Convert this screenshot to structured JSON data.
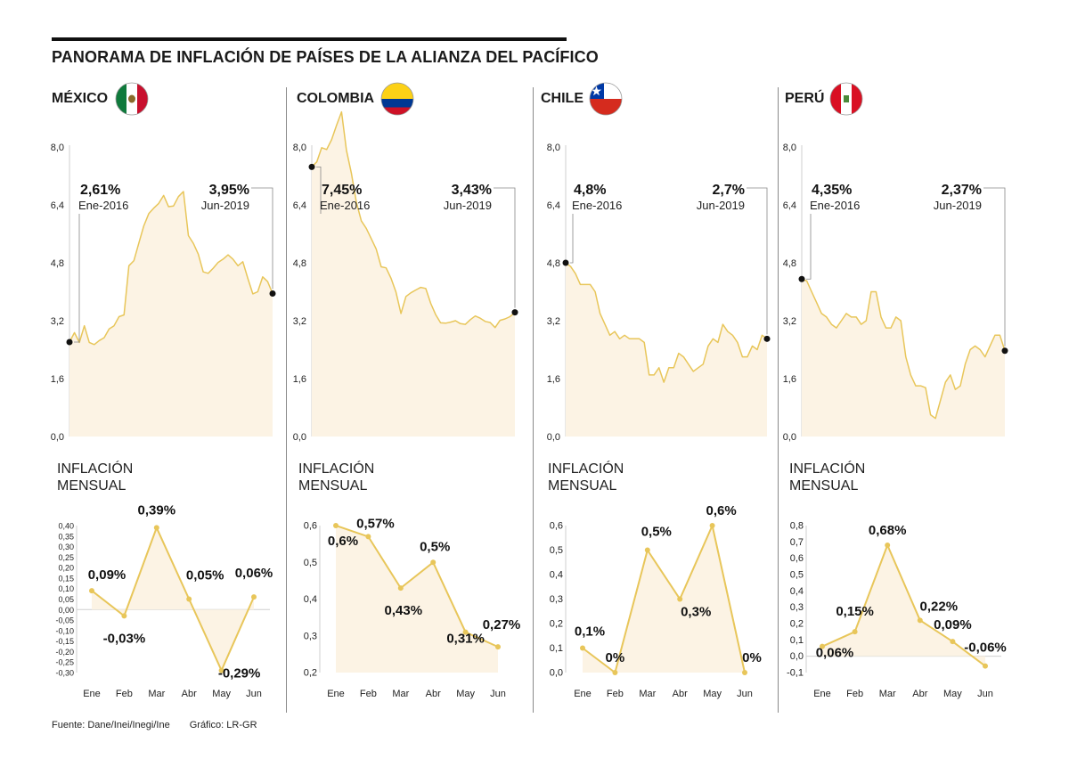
{
  "title": "PANORAMA DE INFLACIÓN DE PAÍSES DE LA ALIANZA DEL PACÍFICO",
  "subtitle_line1": "INFLACIÓN",
  "subtitle_line2": "MENSUAL",
  "footer": {
    "source": "Fuente: Dane/Inei/Inegi/Ine",
    "credit": "Gráfico: LR-GR"
  },
  "colors": {
    "line": "#E8C65A",
    "fill": "#FCF3E4",
    "accent": "#111111"
  },
  "chart_data": [
    {
      "country": "MÉXICO",
      "type": "area",
      "ylim": [
        0,
        8
      ],
      "yticks": [
        "0,0",
        "1,6",
        "3,2",
        "4,8",
        "6,4",
        "8,0"
      ],
      "start": {
        "value": "2,61%",
        "label": "Ene-2016"
      },
      "end": {
        "value": "3,95%",
        "label": "Jun-2019"
      },
      "values": [
        2.61,
        2.87,
        2.6,
        3.06,
        2.6,
        2.54,
        2.65,
        2.73,
        2.97,
        3.06,
        3.31,
        3.36,
        4.72,
        4.86,
        5.35,
        5.82,
        6.16,
        6.31,
        6.44,
        6.66,
        6.35,
        6.37,
        6.63,
        6.77,
        5.55,
        5.34,
        5.04,
        4.55,
        4.51,
        4.65,
        4.81,
        4.9,
        5.02,
        4.9,
        4.72,
        4.83,
        4.37,
        3.94,
        4.0,
        4.41,
        4.28,
        3.95
      ]
    },
    {
      "country": "COLOMBIA",
      "type": "area",
      "ylim": [
        0,
        8
      ],
      "yticks": [
        "0,0",
        "1,6",
        "3,2",
        "4,8",
        "6,4",
        "8,0"
      ],
      "start": {
        "value": "7,45%",
        "label": "Ene-2016"
      },
      "end": {
        "value": "3,43%",
        "label": "Jun-2019"
      },
      "values": [
        7.45,
        7.59,
        7.98,
        7.93,
        8.2,
        8.6,
        8.97,
        7.91,
        7.27,
        6.48,
        5.96,
        5.75,
        5.47,
        5.18,
        4.69,
        4.66,
        4.37,
        3.99,
        3.4,
        3.87,
        3.97,
        4.05,
        4.12,
        4.09,
        3.68,
        3.37,
        3.14,
        3.13,
        3.16,
        3.2,
        3.12,
        3.1,
        3.23,
        3.33,
        3.27,
        3.18,
        3.15,
        3.01,
        3.21,
        3.25,
        3.31,
        3.43
      ]
    },
    {
      "country": "CHILE",
      "type": "area",
      "ylim": [
        0,
        8
      ],
      "yticks": [
        "0,0",
        "1,6",
        "3,2",
        "4,8",
        "6,4",
        "8,0"
      ],
      "start": {
        "value": "4,8%",
        "label": "Ene-2016"
      },
      "end": {
        "value": "2,7%",
        "label": "Jun-2019"
      },
      "values": [
        4.8,
        4.7,
        4.5,
        4.2,
        4.2,
        4.2,
        4.0,
        3.4,
        3.1,
        2.8,
        2.9,
        2.7,
        2.8,
        2.7,
        2.7,
        2.7,
        2.6,
        1.7,
        1.7,
        1.9,
        1.5,
        1.9,
        1.9,
        2.3,
        2.2,
        2.0,
        1.8,
        1.9,
        2.0,
        2.5,
        2.7,
        2.6,
        3.1,
        2.9,
        2.8,
        2.6,
        2.2,
        2.2,
        2.5,
        2.4,
        2.8,
        2.7
      ]
    },
    {
      "country": "PERÚ",
      "type": "area",
      "ylim": [
        0,
        8
      ],
      "yticks": [
        "0,0",
        "1,6",
        "3,2",
        "4,8",
        "6,4",
        "8,0"
      ],
      "start": {
        "value": "4,35%",
        "label": "Ene-2016"
      },
      "end": {
        "value": "2,37%",
        "label": "Jun-2019"
      },
      "values": [
        4.35,
        4.3,
        4.0,
        3.7,
        3.4,
        3.3,
        3.1,
        3.0,
        3.2,
        3.4,
        3.3,
        3.3,
        3.1,
        3.2,
        4.0,
        4.0,
        3.3,
        3.0,
        3.0,
        3.3,
        3.2,
        2.2,
        1.7,
        1.4,
        1.4,
        1.35,
        0.6,
        0.5,
        1.0,
        1.5,
        1.7,
        1.3,
        1.4,
        2.0,
        2.4,
        2.5,
        2.4,
        2.2,
        2.5,
        2.8,
        2.8,
        2.37
      ]
    },
    {
      "country": "MÉXICO",
      "type": "line",
      "title": "INFLACIÓN MENSUAL",
      "categories": [
        "Ene",
        "Feb",
        "Mar",
        "Abr",
        "May",
        "Jun"
      ],
      "values": [
        0.09,
        -0.03,
        0.39,
        0.05,
        -0.29,
        0.06
      ],
      "labels": [
        "0,09%",
        "-0,03%",
        "0,39%",
        "0,05%",
        "-0,29%",
        "0,06%"
      ],
      "ylim": [
        -0.3,
        0.4
      ],
      "yticks": [
        "-0,30",
        "-0,25",
        "-0,20",
        "-0,15",
        "-0,10",
        "-0,05",
        "0,00",
        "0,05",
        "0,10",
        "0,15",
        "0,20",
        "0,25",
        "0,30",
        "0,35",
        "0,40"
      ]
    },
    {
      "country": "COLOMBIA",
      "type": "line",
      "title": "INFLACIÓN MENSUAL",
      "categories": [
        "Ene",
        "Feb",
        "Mar",
        "Abr",
        "May",
        "Jun"
      ],
      "values": [
        0.6,
        0.57,
        0.43,
        0.5,
        0.31,
        0.27
      ],
      "labels": [
        "0,6%",
        "0,57%",
        "0,43%",
        "0,5%",
        "0,31%",
        "0,27%"
      ],
      "ylim": [
        0.2,
        0.6
      ],
      "yticks": [
        "0,2",
        "0,3",
        "0,4",
        "0,5",
        "0,6"
      ]
    },
    {
      "country": "CHILE",
      "type": "line",
      "title": "INFLACIÓN MENSUAL",
      "categories": [
        "Ene",
        "Feb",
        "Mar",
        "Abr",
        "May",
        "Jun"
      ],
      "values": [
        0.1,
        0.0,
        0.5,
        0.3,
        0.6,
        0.0
      ],
      "labels": [
        "0,1%",
        "0%",
        "0,5%",
        "0,3%",
        "0,6%",
        "0%"
      ],
      "ylim": [
        0.0,
        0.6
      ],
      "yticks": [
        "0,0",
        "0,1",
        "0,2",
        "0,3",
        "0,4",
        "0,5",
        "0,6"
      ]
    },
    {
      "country": "PERÚ",
      "type": "line",
      "title": "INFLACIÓN MENSUAL",
      "categories": [
        "Ene",
        "Feb",
        "Mar",
        "Abr",
        "May",
        "Jun"
      ],
      "values": [
        0.06,
        0.15,
        0.68,
        0.22,
        0.09,
        -0.06
      ],
      "labels": [
        "0,06%",
        "0,15%",
        "0,68%",
        "0,22%",
        "0,09%",
        "-0,06%"
      ],
      "ylim": [
        -0.1,
        0.8
      ],
      "yticks": [
        "-0,1",
        "0,0",
        "0,1",
        "0,2",
        "0,3",
        "0,4",
        "0,5",
        "0,6",
        "0,7",
        "0,8"
      ]
    }
  ]
}
